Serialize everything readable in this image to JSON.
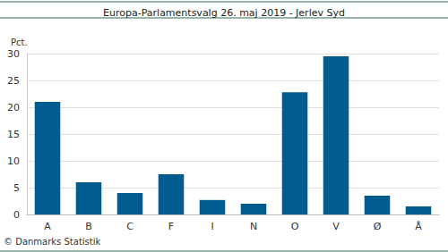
{
  "chart_data": {
    "type": "bar",
    "title": "Europa-Parlamentsvalg 26. maj 2019 - Jerlev Syd",
    "y_label": "Pct.",
    "categories": [
      "A",
      "B",
      "C",
      "F",
      "I",
      "N",
      "O",
      "V",
      "Ø",
      "Å"
    ],
    "values": [
      21.0,
      6.0,
      4.0,
      7.5,
      2.7,
      2.0,
      22.8,
      29.5,
      3.5,
      1.5
    ],
    "color": "#005b8f",
    "ylim": [
      0,
      30
    ],
    "yticks": [
      0,
      5,
      10,
      15,
      20,
      25,
      30
    ],
    "grid": true,
    "annotations": [
      "© Danmarks Statistik"
    ]
  }
}
